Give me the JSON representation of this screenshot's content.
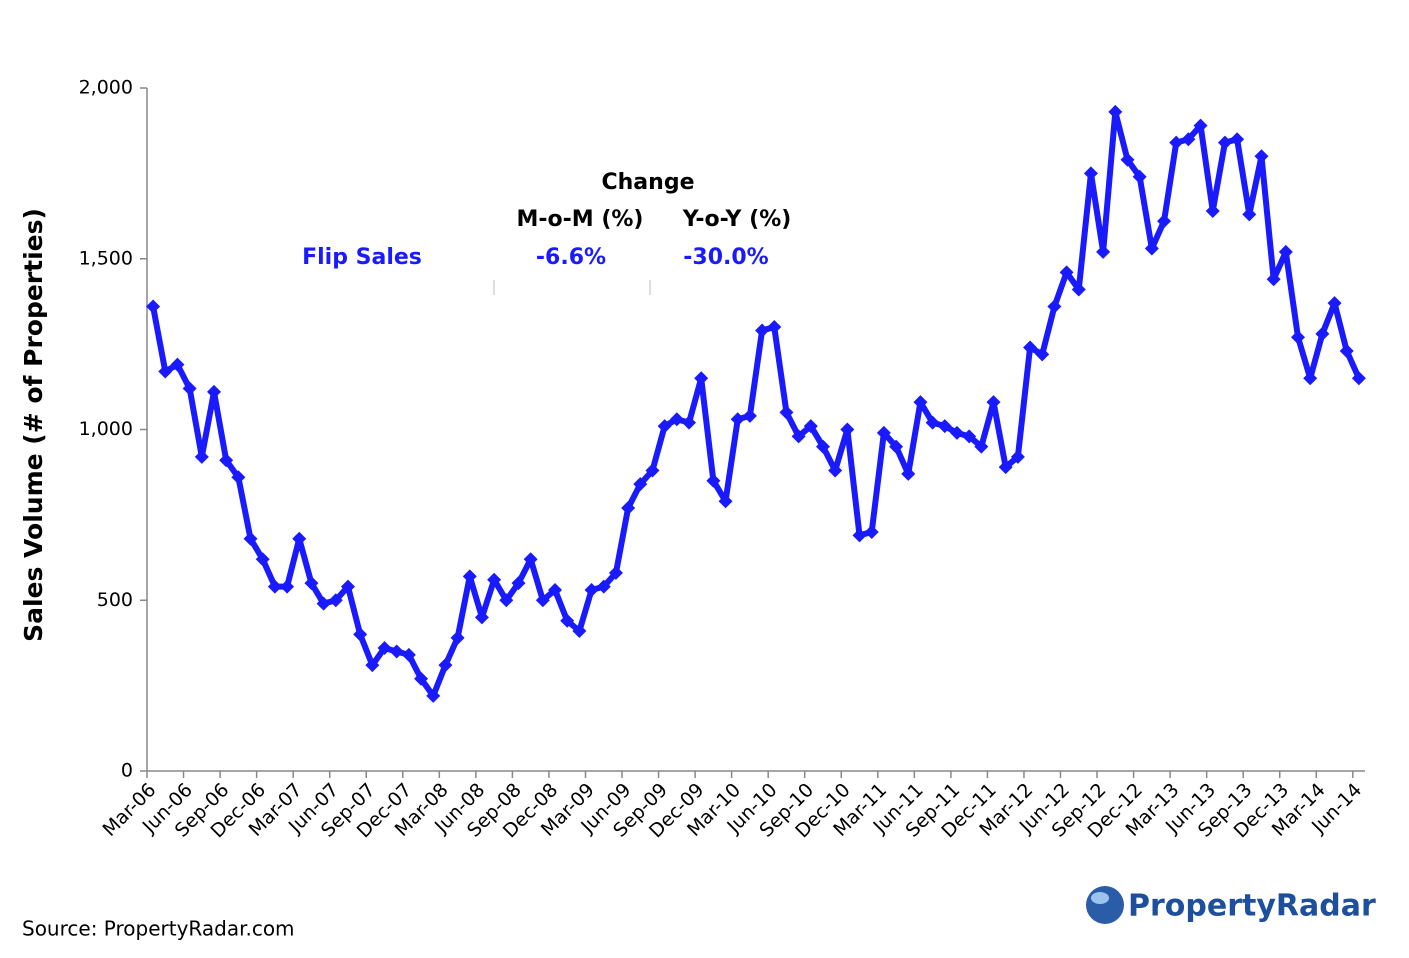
{
  "chart_data": {
    "type": "line",
    "y_label": "Sales Volume (# of Properties)",
    "categories": [
      "Mar-06",
      null,
      null,
      "Jun-06",
      null,
      null,
      "Sep-06",
      null,
      null,
      "Dec-06",
      null,
      null,
      "Mar-07",
      null,
      null,
      "Jun-07",
      null,
      null,
      "Sep-07",
      null,
      null,
      "Dec-07",
      null,
      null,
      "Mar-08",
      null,
      null,
      "Jun-08",
      null,
      null,
      "Sep-08",
      null,
      null,
      "Dec-08",
      null,
      null,
      "Mar-09",
      null,
      null,
      "Jun-09",
      null,
      null,
      "Sep-09",
      null,
      null,
      "Dec-09",
      null,
      null,
      "Mar-10",
      null,
      null,
      "Jun-10",
      null,
      null,
      "Sep-10",
      null,
      null,
      "Dec-10",
      null,
      null,
      "Mar-11",
      null,
      null,
      "Jun-11",
      null,
      null,
      "Sep-11",
      null,
      null,
      "Dec-11",
      null,
      null,
      "Mar-12",
      null,
      null,
      "Jun-12",
      null,
      null,
      "Sep-12",
      null,
      null,
      "Dec-12",
      null,
      null,
      "Mar-13",
      null,
      null,
      "Jun-13",
      null,
      null,
      "Sep-13",
      null,
      null,
      "Dec-13",
      null,
      null,
      "Mar-14",
      null,
      null,
      "Jun-14"
    ],
    "series": [
      {
        "name": "Flip Sales",
        "color": "#1a1aff",
        "values": [
          1360,
          1170,
          1190,
          1120,
          920,
          1110,
          910,
          860,
          680,
          620,
          540,
          540,
          680,
          550,
          490,
          500,
          540,
          400,
          310,
          360,
          350,
          340,
          270,
          220,
          310,
          390,
          570,
          450,
          560,
          500,
          550,
          620,
          500,
          530,
          440,
          410,
          530,
          540,
          580,
          770,
          840,
          880,
          1010,
          1030,
          1020,
          1150,
          850,
          790,
          1030,
          1040,
          1290,
          1300,
          1050,
          980,
          1010,
          950,
          880,
          1000,
          690,
          700,
          990,
          950,
          870,
          1080,
          1020,
          1010,
          990,
          980,
          950,
          1080,
          890,
          920,
          1240,
          1220,
          1360,
          1460,
          1410,
          1750,
          1520,
          1930,
          1790,
          1740,
          1530,
          1610,
          1840,
          1850,
          1890,
          1640,
          1840,
          1850,
          1630,
          1800,
          1440,
          1520,
          1270,
          1150,
          1280,
          1370,
          1230,
          1150
        ]
      }
    ],
    "ylim": [
      0,
      2000
    ],
    "yticks": [
      0,
      500,
      {
        "value": 1000,
        "label": "1,000"
      },
      {
        "value": 1500,
        "label": "1,500"
      },
      {
        "value": 2000,
        "label": "2,000"
      }
    ],
    "change_table": {
      "title": "Change",
      "columns": [
        "M-o-M (%)",
        "Y-o-Y (%)"
      ],
      "row_label": "Flip Sales",
      "row_values": [
        "-6.6%",
        "-30.0%"
      ]
    },
    "source": "Source: PropertyRadar.com",
    "logo": "PropertyRadar"
  }
}
